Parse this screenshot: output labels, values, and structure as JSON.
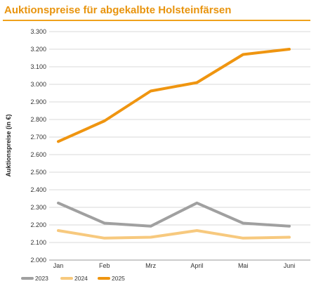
{
  "chart_data": {
    "type": "line",
    "title": "Auktionspreise für abgekalbte Holsteinfärsen",
    "xlabel": "",
    "ylabel": "Auktionspreise (in €)",
    "categories": [
      "Jan",
      "Feb",
      "Mrz",
      "April",
      "Mai",
      "Juni"
    ],
    "y_ticks": [
      "2.000",
      "2.100",
      "2.200",
      "2.300",
      "2.400",
      "2.500",
      "2.600",
      "2.700",
      "2.800",
      "2.900",
      "3.000",
      "3.100",
      "3.200",
      "3.300"
    ],
    "ylim": [
      2000,
      3300
    ],
    "grid": true,
    "legend_position": "bottom-left",
    "series": [
      {
        "name": "2023",
        "color": "#a0a0a0",
        "values": [
          2325,
          2210,
          2193,
          2325,
          2210,
          2193
        ]
      },
      {
        "name": "2024",
        "color": "#f7c97e",
        "values": [
          2168,
          2125,
          2130,
          2168,
          2125,
          2130
        ]
      },
      {
        "name": "2025",
        "color": "#ef9510",
        "values": [
          2675,
          2792,
          2962,
          3010,
          3170,
          3200
        ]
      }
    ]
  }
}
